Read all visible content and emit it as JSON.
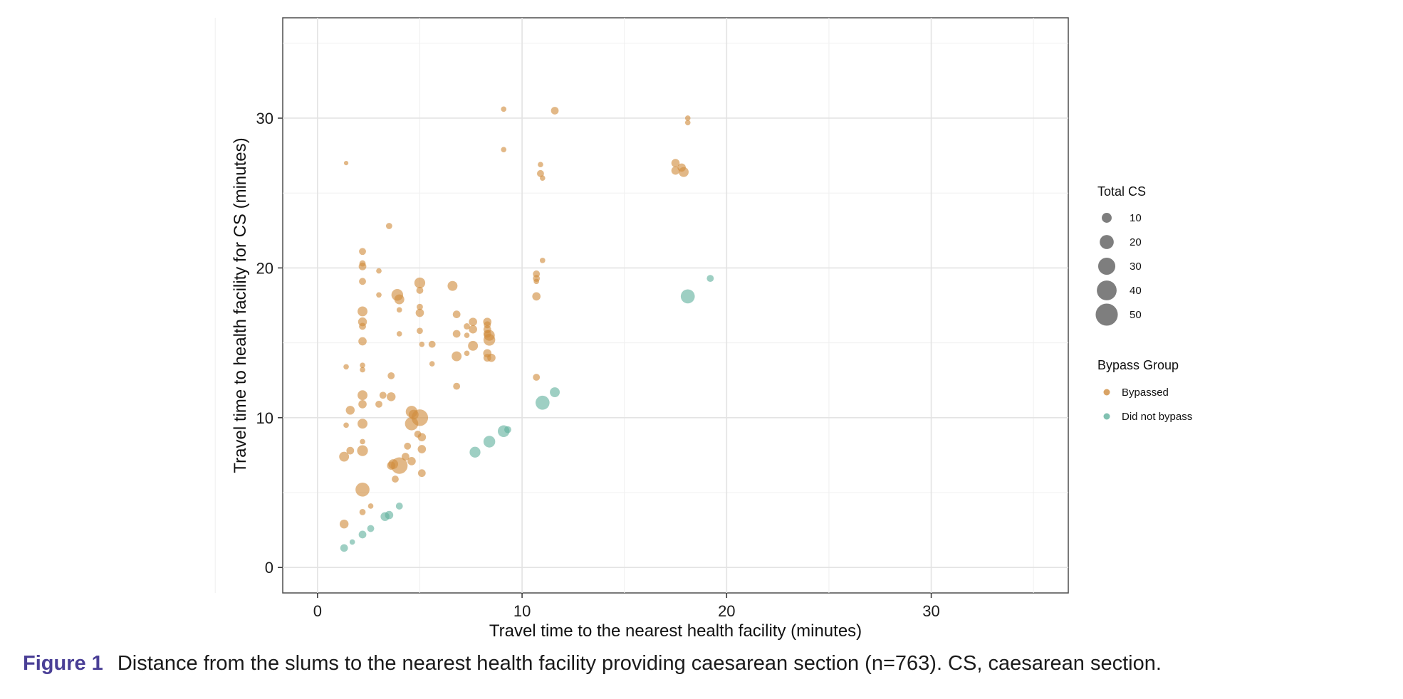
{
  "figure": {
    "label": "Figure 1",
    "caption": "Distance from the slums to the nearest health facility providing caesarean section (n=763). CS, caesarean section."
  },
  "chart_data": {
    "type": "scatter",
    "xlabel": "Travel time to the nearest health facility (minutes)",
    "ylabel": "Travel time to health facility for CS (minutes)",
    "xlim": [
      -1.7,
      36.7
    ],
    "ylim": [
      -1.7,
      36.7
    ],
    "xticks": [
      0,
      10,
      20,
      30
    ],
    "yticks": [
      0,
      10,
      20,
      30
    ],
    "grid": true,
    "legend_position": "right",
    "size_legend": {
      "title": "Total CS",
      "values": [
        10,
        20,
        30,
        40,
        50
      ]
    },
    "color_legend": {
      "title": "Bypass Group",
      "entries": [
        {
          "name": "Bypassed",
          "color": "#d08c3e"
        },
        {
          "name": "Did not bypass",
          "color": "#62b19e"
        }
      ]
    },
    "series": [
      {
        "name": "Bypassed",
        "color": "#d08c3e",
        "points": [
          [
            1.4,
            27.0,
            2
          ],
          [
            3.5,
            22.8,
            4
          ],
          [
            2.2,
            21.1,
            5
          ],
          [
            2.2,
            20.3,
            4
          ],
          [
            2.2,
            20.1,
            6
          ],
          [
            3.0,
            19.8,
            3
          ],
          [
            2.2,
            19.1,
            5
          ],
          [
            3.0,
            18.2,
            3
          ],
          [
            3.9,
            18.2,
            14
          ],
          [
            4.0,
            17.9,
            10
          ],
          [
            2.2,
            17.1,
            10
          ],
          [
            4.0,
            17.2,
            3
          ],
          [
            2.2,
            16.4,
            8
          ],
          [
            2.2,
            16.1,
            5
          ],
          [
            4.0,
            15.6,
            3
          ],
          [
            2.2,
            15.1,
            7
          ],
          [
            1.4,
            13.4,
            3
          ],
          [
            2.2,
            13.5,
            3
          ],
          [
            2.2,
            13.2,
            3
          ],
          [
            3.6,
            12.8,
            5
          ],
          [
            3.2,
            11.5,
            5
          ],
          [
            3.6,
            11.4,
            8
          ],
          [
            2.2,
            11.5,
            10
          ],
          [
            3.0,
            10.9,
            5
          ],
          [
            2.2,
            10.9,
            7
          ],
          [
            1.6,
            10.5,
            8
          ],
          [
            1.4,
            9.5,
            3
          ],
          [
            2.2,
            9.6,
            10
          ],
          [
            4.6,
            10.4,
            14
          ],
          [
            4.7,
            10.2,
            10
          ],
          [
            5.0,
            10.0,
            28
          ],
          [
            4.6,
            9.6,
            18
          ],
          [
            4.9,
            8.9,
            5
          ],
          [
            5.1,
            8.7,
            7
          ],
          [
            4.4,
            8.1,
            5
          ],
          [
            2.2,
            8.4,
            3
          ],
          [
            5.1,
            7.9,
            7
          ],
          [
            1.6,
            7.8,
            6
          ],
          [
            2.2,
            7.8,
            12
          ],
          [
            1.3,
            7.4,
            10
          ],
          [
            4.3,
            7.4,
            6
          ],
          [
            4.6,
            7.1,
            7
          ],
          [
            3.7,
            6.9,
            10
          ],
          [
            4.0,
            6.8,
            28
          ],
          [
            3.6,
            6.8,
            7
          ],
          [
            5.1,
            6.3,
            6
          ],
          [
            3.8,
            5.9,
            5
          ],
          [
            2.2,
            5.2,
            20
          ],
          [
            2.6,
            4.1,
            3
          ],
          [
            2.2,
            3.7,
            4
          ],
          [
            1.3,
            2.9,
            8
          ],
          [
            5.0,
            19.0,
            12
          ],
          [
            5.0,
            18.5,
            5
          ],
          [
            5.0,
            17.4,
            4
          ],
          [
            5.0,
            17.0,
            7
          ],
          [
            5.0,
            15.8,
            4
          ],
          [
            5.1,
            14.9,
            3
          ],
          [
            5.6,
            14.9,
            5
          ],
          [
            5.6,
            13.6,
            3
          ],
          [
            6.6,
            18.8,
            10
          ],
          [
            6.8,
            16.9,
            6
          ],
          [
            7.3,
            16.1,
            4
          ],
          [
            7.6,
            16.4,
            7
          ],
          [
            7.6,
            15.9,
            7
          ],
          [
            6.8,
            15.6,
            6
          ],
          [
            7.3,
            15.5,
            3
          ],
          [
            7.6,
            14.8,
            10
          ],
          [
            6.8,
            14.1,
            10
          ],
          [
            7.3,
            14.3,
            3
          ],
          [
            6.8,
            12.1,
            5
          ],
          [
            8.3,
            16.4,
            7
          ],
          [
            8.3,
            16.2,
            5
          ],
          [
            8.3,
            15.9,
            6
          ],
          [
            8.3,
            15.6,
            6
          ],
          [
            8.4,
            15.5,
            12
          ],
          [
            8.4,
            15.2,
            14
          ],
          [
            8.3,
            14.3,
            7
          ],
          [
            8.3,
            14.0,
            6
          ],
          [
            8.5,
            14.0,
            7
          ],
          [
            9.1,
            30.6,
            3
          ],
          [
            9.1,
            27.9,
            3
          ],
          [
            11.6,
            30.5,
            6
          ],
          [
            10.9,
            26.9,
            3
          ],
          [
            10.9,
            26.3,
            5
          ],
          [
            11.0,
            26.0,
            3
          ],
          [
            11.0,
            20.5,
            3
          ],
          [
            10.7,
            19.6,
            5
          ],
          [
            10.7,
            19.3,
            5
          ],
          [
            10.7,
            19.1,
            3
          ],
          [
            10.7,
            18.1,
            7
          ],
          [
            10.7,
            12.7,
            5
          ],
          [
            18.1,
            30.0,
            3
          ],
          [
            18.1,
            29.7,
            3
          ],
          [
            17.5,
            27.0,
            7
          ],
          [
            17.8,
            26.7,
            7
          ],
          [
            17.5,
            26.5,
            7
          ],
          [
            17.9,
            26.4,
            10
          ]
        ]
      },
      {
        "name": "Did not bypass",
        "color": "#62b19e",
        "points": [
          [
            19.2,
            19.3,
            5
          ],
          [
            18.1,
            18.1,
            20
          ],
          [
            11.6,
            11.7,
            10
          ],
          [
            11.0,
            11.0,
            20
          ],
          [
            9.1,
            9.1,
            14
          ],
          [
            9.3,
            9.2,
            5
          ],
          [
            8.4,
            8.4,
            14
          ],
          [
            7.7,
            7.7,
            12
          ],
          [
            4.0,
            4.1,
            5
          ],
          [
            3.5,
            3.5,
            7
          ],
          [
            3.3,
            3.4,
            8
          ],
          [
            2.6,
            2.6,
            5
          ],
          [
            2.2,
            2.2,
            6
          ],
          [
            1.7,
            1.7,
            3
          ],
          [
            1.3,
            1.3,
            6
          ]
        ]
      }
    ]
  }
}
